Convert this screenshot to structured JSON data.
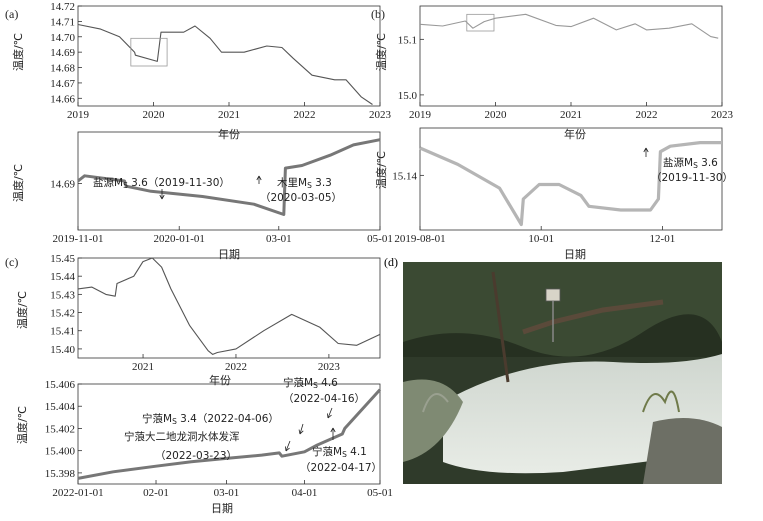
{
  "panel_labels": {
    "a": "(a)",
    "b": "(b)",
    "c": "(c)",
    "d": "(d)"
  },
  "ylabel": "温度/℃",
  "xlabel_year": "年份",
  "xlabel_date": "日期",
  "chart_data": [
    {
      "id": "a-top",
      "type": "line",
      "xlim": [
        2019,
        2023
      ],
      "ylim": [
        14.655,
        14.72
      ],
      "xticks": [
        "2019",
        "2020",
        "2021",
        "2022",
        "2023"
      ],
      "yticks": [
        "14.72",
        "14.71",
        "14.70",
        "14.69",
        "14.68",
        "14.67",
        "14.66"
      ],
      "xlabel": "年份",
      "ylabel": "温度/℃",
      "x": [
        2019.0,
        2019.3,
        2019.55,
        2019.75,
        2019.76,
        2020.05,
        2020.1,
        2020.4,
        2020.55,
        2020.75,
        2020.9,
        2021.2,
        2021.5,
        2021.7,
        2021.85,
        2022.1,
        2022.4,
        2022.55,
        2022.75,
        2022.9
      ],
      "y": [
        14.708,
        14.705,
        14.7,
        14.69,
        14.688,
        14.684,
        14.703,
        14.703,
        14.707,
        14.699,
        14.69,
        14.69,
        14.694,
        14.693,
        14.686,
        14.675,
        14.672,
        14.672,
        14.661,
        14.656
      ],
      "highlight_box": {
        "x": [
          2019.7,
          2020.18
        ],
        "y": [
          14.681,
          14.699
        ]
      }
    },
    {
      "id": "a-bot",
      "type": "line",
      "xlim": [
        "2019-11-01",
        "2020-05-01"
      ],
      "ylim": [
        14.681,
        14.7
      ],
      "xticks": [
        "2019-11-01",
        "2020-01-01",
        "03-01",
        "05-01"
      ],
      "yticks": [
        "14.69"
      ],
      "xlabel": "日期",
      "ylabel": "温度/℃",
      "x": [
        "2019-11-01",
        "2019-11-05",
        "2019-11-29",
        "2019-11-30",
        "2019-12-15",
        "2020-01-15",
        "2020-02-15",
        "2020-03-04",
        "2020-03-05",
        "2020-03-15",
        "2020-04-01",
        "2020-04-15",
        "2020-05-01"
      ],
      "y": [
        14.6905,
        14.6915,
        14.6905,
        14.6895,
        14.6885,
        14.6875,
        14.686,
        14.684,
        14.693,
        14.6935,
        14.6955,
        14.6975,
        14.6985
      ],
      "annotations": [
        {
          "text": "盐源M",
          "sub": "S",
          "rest": " 3.6（2019-11-30）"
        },
        {
          "text": "木里M",
          "sub": "S",
          "rest": " 3.3"
        },
        {
          "text": "（2020-03-05）"
        }
      ]
    },
    {
      "id": "b-top",
      "type": "line",
      "xlim": [
        2019,
        2023
      ],
      "ylim": [
        14.98,
        15.16
      ],
      "xticks": [
        "2019",
        "2020",
        "2021",
        "2022",
        "2023"
      ],
      "yticks": [
        "15.1",
        "15.0"
      ],
      "xlabel": "年份",
      "ylabel": "温度/℃",
      "x": [
        2019.0,
        2019.3,
        2019.6,
        2019.7,
        2019.85,
        2020.0,
        2020.4,
        2020.8,
        2021.0,
        2021.3,
        2021.6,
        2021.85,
        2022.0,
        2022.3,
        2022.6,
        2022.85,
        2022.95
      ],
      "y": [
        15.127,
        15.124,
        15.133,
        15.12,
        15.132,
        15.138,
        15.145,
        15.125,
        15.123,
        15.138,
        15.117,
        15.128,
        15.117,
        15.12,
        15.128,
        15.105,
        15.102
      ],
      "highlight_box": {
        "x": [
          2019.62,
          2019.98
        ],
        "y": [
          15.115,
          15.145
        ]
      }
    },
    {
      "id": "b-bot",
      "type": "line",
      "xlim": [
        "2019-08-01",
        "2019-12-31"
      ],
      "ylim": [
        15.125,
        15.153
      ],
      "xticks": [
        "2019-08-01",
        "10-01",
        "12-01"
      ],
      "yticks": [
        "15.14"
      ],
      "xlabel": "日期",
      "ylabel": "温度/℃",
      "x": [
        "2019-08-01",
        "2019-08-20",
        "2019-09-10",
        "2019-09-21",
        "2019-09-22",
        "2019-09-30",
        "2019-10-10",
        "2019-10-21",
        "2019-10-25",
        "2019-11-10",
        "2019-11-25",
        "2019-11-29",
        "2019-11-30",
        "2019-12-05",
        "2019-12-20",
        "2019-12-31"
      ],
      "y": [
        15.1475,
        15.143,
        15.1365,
        15.1265,
        15.1335,
        15.1375,
        15.1375,
        15.1345,
        15.1315,
        15.1305,
        15.1305,
        15.1335,
        15.1465,
        15.148,
        15.149,
        15.149
      ],
      "annotations": [
        {
          "text": "盐源M",
          "sub": "S",
          "rest": " 3.6"
        },
        {
          "text": "（2019-11-30）"
        }
      ]
    },
    {
      "id": "c-top",
      "type": "line",
      "xlim": [
        2020.3,
        2023.55
      ],
      "ylim": [
        15.395,
        15.45
      ],
      "xticks": [
        "2021",
        "2022",
        "2023"
      ],
      "yticks": [
        "15.45",
        "15.44",
        "15.43",
        "15.42",
        "15.41",
        "15.40"
      ],
      "xlabel": "年份",
      "ylabel": "温度/℃",
      "x": [
        2020.3,
        2020.45,
        2020.6,
        2020.7,
        2020.72,
        2020.9,
        2021.0,
        2021.1,
        2021.2,
        2021.3,
        2021.5,
        2021.7,
        2021.75,
        2021.8,
        2022.0,
        2022.3,
        2022.6,
        2022.9,
        2023.1,
        2023.3,
        2023.55
      ],
      "y": [
        15.433,
        15.434,
        15.43,
        15.429,
        15.436,
        15.44,
        15.448,
        15.45,
        15.445,
        15.433,
        15.413,
        15.399,
        15.397,
        15.398,
        15.4,
        15.41,
        15.419,
        15.412,
        15.403,
        15.402,
        15.408
      ]
    },
    {
      "id": "c-bot",
      "type": "line",
      "xlim": [
        "2022-01-01",
        "2022-05-01"
      ],
      "ylim": [
        15.397,
        15.406
      ],
      "xticks": [
        "2022-01-01",
        "02-01",
        "03-01",
        "04-01",
        "05-01"
      ],
      "yticks": [
        "15.406",
        "15.404",
        "15.402",
        "15.400",
        "15.398"
      ],
      "xlabel": "日期",
      "ylabel": "温度/℃",
      "x": [
        "2022-01-01",
        "2022-01-15",
        "2022-02-01",
        "2022-02-15",
        "2022-03-01",
        "2022-03-15",
        "2022-03-22",
        "2022-03-23",
        "2022-04-01",
        "2022-04-06",
        "2022-04-16",
        "2022-04-17",
        "2022-04-25",
        "2022-05-01"
      ],
      "y": [
        15.3975,
        15.3981,
        15.3986,
        15.399,
        15.3993,
        15.3996,
        15.3998,
        15.3995,
        15.3999,
        15.4005,
        15.4015,
        15.402,
        15.404,
        15.4055
      ],
      "annotations": [
        {
          "text": "宁蒗M",
          "sub": "S",
          "rest": " 4.6"
        },
        {
          "text": "（2022-04-16）"
        },
        {
          "text": "宁蒗M",
          "sub": "S",
          "rest": " 3.4（2022-04-06）"
        },
        {
          "text": "宁蒗大二地龙洞水体发浑"
        },
        {
          "text": "（2022-03-23）"
        },
        {
          "text": "宁蒗M",
          "sub": "S",
          "rest": " 4.1"
        },
        {
          "text": "（2022-04-17）"
        }
      ]
    }
  ]
}
